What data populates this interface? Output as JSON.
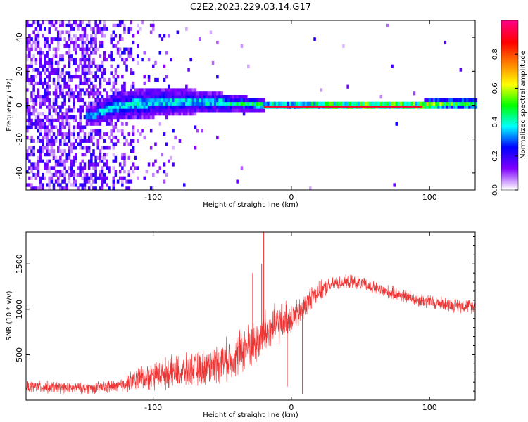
{
  "title": "C2E2.2023.229.03.14.G17",
  "chart_data": [
    {
      "type": "heatmap",
      "xlabel": "Height of straight line (km)",
      "ylabel": "Frequency (Hz)",
      "xlim": [
        -192,
        133
      ],
      "ylim": [
        -50,
        50
      ],
      "x_ticks": [
        -100,
        0,
        100
      ],
      "y_ticks": [
        -40,
        -20,
        0,
        20,
        40
      ],
      "x_tick_labels": [
        "-100",
        "0",
        "100"
      ],
      "y_tick_labels": [
        "-40",
        "-20",
        "0",
        "20",
        "40"
      ],
      "colorbar": {
        "label": "Normalized spectral amplitude",
        "range": [
          0,
          1
        ],
        "ticks": [
          0.0,
          0.2,
          0.4,
          0.6,
          0.8
        ],
        "tick_labels": [
          "0.0",
          "0.2",
          "0.4",
          "0.6",
          "0.8"
        ],
        "colormap": [
          "#ffffff",
          "#8000ff",
          "#0000ff",
          "#00ffff",
          "#00ff00",
          "#ffff00",
          "#ff8000",
          "#ff0000",
          "#ff0080"
        ]
      },
      "band": [
        {
          "x": -145,
          "center": -7,
          "halfwidth": 6,
          "peak": 0.3
        },
        {
          "x": -130,
          "center": -2,
          "halfwidth": 8,
          "peak": 0.35
        },
        {
          "x": -100,
          "center": 1,
          "halfwidth": 9,
          "peak": 0.35
        },
        {
          "x": -70,
          "center": 1,
          "halfwidth": 7,
          "peak": 0.35
        },
        {
          "x": -40,
          "center": 0,
          "halfwidth": 5,
          "peak": 0.4
        },
        {
          "x": -20,
          "center": -1,
          "halfwidth": 3,
          "peak": 0.55
        },
        {
          "x": 0,
          "center": -1,
          "halfwidth": 3,
          "peak": 0.6
        },
        {
          "x": 50,
          "center": -1,
          "halfwidth": 3,
          "peak": 0.8
        },
        {
          "x": 95,
          "center": -1,
          "halfwidth": 3,
          "peak": 0.75
        },
        {
          "x": 110,
          "center": 0,
          "halfwidth": 4,
          "peak": 0.55
        },
        {
          "x": 133,
          "center": 0,
          "halfwidth": 4,
          "peak": 0.5
        }
      ]
    },
    {
      "type": "line",
      "xlabel": "Height of straight line (km)",
      "ylabel": "SNR (10 * v/v)",
      "xlim": [
        -192,
        133
      ],
      "ylim": [
        0,
        1850
      ],
      "x_ticks": [
        -100,
        0,
        100
      ],
      "y_ticks": [
        500,
        1000,
        1500
      ],
      "x_tick_labels": [
        "-100",
        "0",
        "100"
      ],
      "y_tick_labels": [
        "500",
        "1000",
        "1500"
      ],
      "color": "#ee3333",
      "series": [
        {
          "x": [
            -192,
            -170,
            -150,
            -125,
            -110,
            -90,
            -70,
            -50,
            -35,
            -25,
            -18,
            -10,
            -3,
            5,
            15,
            30,
            45,
            60,
            80,
            100,
            115,
            133
          ],
          "mean": [
            150,
            140,
            130,
            150,
            240,
            300,
            330,
            420,
            550,
            650,
            750,
            830,
            900,
            930,
            1150,
            1280,
            1310,
            1230,
            1150,
            1080,
            1050,
            1030
          ],
          "noise": [
            80,
            80,
            70,
            90,
            160,
            200,
            220,
            260,
            300,
            300,
            300,
            260,
            240,
            200,
            150,
            90,
            90,
            90,
            90,
            90,
            90,
            90
          ]
        }
      ],
      "spikes": [
        {
          "x": -20,
          "y": 1850
        },
        {
          "x": -21.5,
          "y": 1500
        },
        {
          "x": -28,
          "y": 1400
        },
        {
          "x": 8,
          "y": 70
        },
        {
          "x": -3,
          "y": 150
        }
      ]
    }
  ]
}
